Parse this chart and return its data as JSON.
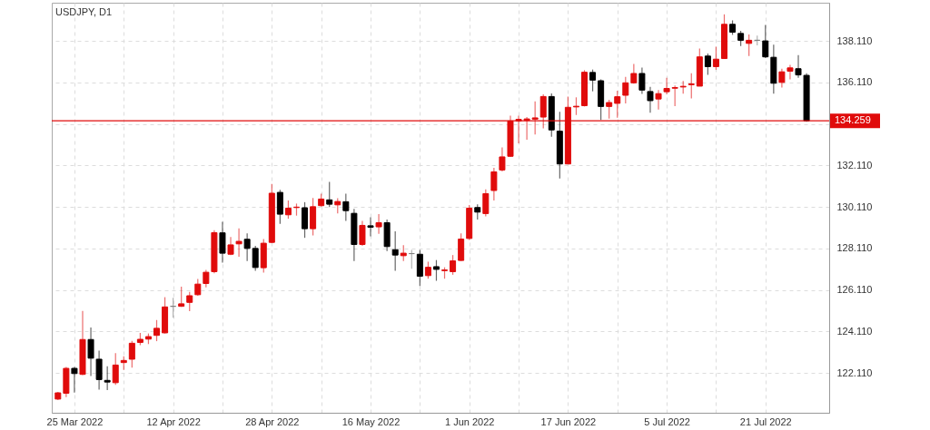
{
  "chart_data": {
    "type": "candlestick",
    "title": "USDJPY, D1",
    "categories": [
      null,
      null,
      "25 Mar 2022",
      null,
      null,
      null,
      null,
      null,
      null,
      null,
      null,
      null,
      null,
      null,
      "12 Apr 2022",
      null,
      null,
      null,
      null,
      null,
      null,
      null,
      null,
      null,
      null,
      null,
      "28 Apr 2022",
      null,
      null,
      null,
      null,
      null,
      null,
      null,
      null,
      null,
      null,
      null,
      "16 May 2022",
      null,
      null,
      null,
      null,
      null,
      null,
      null,
      null,
      null,
      null,
      null,
      "1 Jun 2022",
      null,
      null,
      null,
      null,
      null,
      null,
      null,
      null,
      null,
      null,
      null,
      "17 Jun 2022",
      null,
      null,
      null,
      null,
      null,
      null,
      null,
      null,
      null,
      null,
      null,
      "5 Jul 2022",
      null,
      null,
      null,
      null,
      null,
      null,
      null,
      null,
      null,
      null,
      null,
      "21 Jul 2022",
      null,
      null,
      null,
      null,
      null
    ],
    "ohlc": [
      [
        120.85,
        121.2,
        120.8,
        121.15
      ],
      [
        121.13,
        122.4,
        120.94,
        122.33
      ],
      [
        122.33,
        122.4,
        121.16,
        122.08
      ],
      [
        122.04,
        125.1,
        122.0,
        123.72
      ],
      [
        123.72,
        124.3,
        121.96,
        122.82
      ],
      [
        122.77,
        123.18,
        121.31,
        121.79
      ],
      [
        121.75,
        122.43,
        121.28,
        121.67
      ],
      [
        121.64,
        123.06,
        121.53,
        122.49
      ],
      [
        122.61,
        122.91,
        122.26,
        122.71
      ],
      [
        122.77,
        123.66,
        122.37,
        123.54
      ],
      [
        123.58,
        124.04,
        123.45,
        123.73
      ],
      [
        123.74,
        124.01,
        123.5,
        123.86
      ],
      [
        123.92,
        124.66,
        123.64,
        124.26
      ],
      [
        124.04,
        125.76,
        124.01,
        125.29
      ],
      [
        125.32,
        125.73,
        124.77,
        125.32
      ],
      [
        125.32,
        126.27,
        125.29,
        125.44
      ],
      [
        125.51,
        126.02,
        125.09,
        125.83
      ],
      [
        125.88,
        126.64,
        125.83,
        126.39
      ],
      [
        126.42,
        127.07,
        126.23,
        126.96
      ],
      [
        126.99,
        128.99,
        126.91,
        128.87
      ],
      [
        128.86,
        129.39,
        127.42,
        127.88
      ],
      [
        127.83,
        128.66,
        127.79,
        128.28
      ],
      [
        128.33,
        129.07,
        127.71,
        128.45
      ],
      [
        128.55,
        128.84,
        127.5,
        128.11
      ],
      [
        128.11,
        128.23,
        127.03,
        127.19
      ],
      [
        127.18,
        128.56,
        126.94,
        128.36
      ],
      [
        128.4,
        131.22,
        128.37,
        130.77
      ],
      [
        130.81,
        130.93,
        129.29,
        129.76
      ],
      [
        129.73,
        130.42,
        129.54,
        130.05
      ],
      [
        130.08,
        130.27,
        129.69,
        130.1
      ],
      [
        130.07,
        130.34,
        128.62,
        129.06
      ],
      [
        129.06,
        130.54,
        128.74,
        130.12
      ],
      [
        130.17,
        130.75,
        130.12,
        130.49
      ],
      [
        130.45,
        131.32,
        130.1,
        130.24
      ],
      [
        130.21,
        130.53,
        129.8,
        130.37
      ],
      [
        130.36,
        130.75,
        129.44,
        129.93
      ],
      [
        129.8,
        130.02,
        127.5,
        128.3
      ],
      [
        128.3,
        129.44,
        128.23,
        129.22
      ],
      [
        129.2,
        129.61,
        128.69,
        129.13
      ],
      [
        129.15,
        129.76,
        128.81,
        129.35
      ],
      [
        129.35,
        129.5,
        127.98,
        128.2
      ],
      [
        128.05,
        128.93,
        127.03,
        127.79
      ],
      [
        127.76,
        128.27,
        127.5,
        127.88
      ],
      [
        127.86,
        128.04,
        127.13,
        127.86
      ],
      [
        127.83,
        128.04,
        126.3,
        126.77
      ],
      [
        126.8,
        127.47,
        126.65,
        127.2
      ],
      [
        127.23,
        127.55,
        126.55,
        127.1
      ],
      [
        127.04,
        127.2,
        126.65,
        127.07
      ],
      [
        126.99,
        127.79,
        126.84,
        127.51
      ],
      [
        127.53,
        128.84,
        127.5,
        128.56
      ],
      [
        128.59,
        130.2,
        128.52,
        130.05
      ],
      [
        130.08,
        130.23,
        129.5,
        129.86
      ],
      [
        129.79,
        130.96,
        129.66,
        130.75
      ],
      [
        130.9,
        131.99,
        130.42,
        131.8
      ],
      [
        131.89,
        132.98,
        131.82,
        132.52
      ],
      [
        132.55,
        134.51,
        132.52,
        134.25
      ],
      [
        134.25,
        134.51,
        133.17,
        134.33
      ],
      [
        134.28,
        134.44,
        133.35,
        134.35
      ],
      [
        134.34,
        135.2,
        133.6,
        134.4
      ],
      [
        134.44,
        135.54,
        133.9,
        135.43
      ],
      [
        135.43,
        135.58,
        133.49,
        133.82
      ],
      [
        133.76,
        134.69,
        131.48,
        132.18
      ],
      [
        132.18,
        135.43,
        132.18,
        134.91
      ],
      [
        134.93,
        135.39,
        134.54,
        134.96
      ],
      [
        134.99,
        136.7,
        134.95,
        136.6
      ],
      [
        136.59,
        136.73,
        135.68,
        136.22
      ],
      [
        136.19,
        136.26,
        134.3,
        134.95
      ],
      [
        134.95,
        135.27,
        134.37,
        135.14
      ],
      [
        135.1,
        135.71,
        134.41,
        135.42
      ],
      [
        135.49,
        136.38,
        135.1,
        136.09
      ],
      [
        136.09,
        137.0,
        136.05,
        136.54
      ],
      [
        136.54,
        136.82,
        135.56,
        135.74
      ],
      [
        135.67,
        135.89,
        134.65,
        135.23
      ],
      [
        135.31,
        135.74,
        134.8,
        135.57
      ],
      [
        135.66,
        136.33,
        135.53,
        135.82
      ],
      [
        135.83,
        135.96,
        134.97,
        135.86
      ],
      [
        135.89,
        136.18,
        135.57,
        135.92
      ],
      [
        136.0,
        136.55,
        135.34,
        136.04
      ],
      [
        135.93,
        137.74,
        135.93,
        137.34
      ],
      [
        137.38,
        137.5,
        136.47,
        136.87
      ],
      [
        136.87,
        137.83,
        136.72,
        137.23
      ],
      [
        137.26,
        139.39,
        137.26,
        138.91
      ],
      [
        138.91,
        139.1,
        138.4,
        138.53
      ],
      [
        138.47,
        138.59,
        137.86,
        138.14
      ],
      [
        137.99,
        138.42,
        137.38,
        138.14
      ],
      [
        138.14,
        138.37,
        137.89,
        138.14
      ],
      [
        138.11,
        138.88,
        137.28,
        137.34
      ],
      [
        137.32,
        137.93,
        135.57,
        136.07
      ],
      [
        136.11,
        136.77,
        135.86,
        136.62
      ],
      [
        136.65,
        136.96,
        136.26,
        136.81
      ],
      [
        136.77,
        137.42,
        136.33,
        136.47
      ],
      [
        136.45,
        136.55,
        134.21,
        134.26
      ]
    ],
    "colors": [
      "#e00b0b",
      "#e00b0b",
      "#000000",
      "#e00b0b",
      "#000000",
      "#000000",
      "#000000",
      "#e00b0b",
      "#e00b0b",
      "#e00b0b",
      "#e00b0b",
      "#e00b0b",
      "#e00b0b",
      "#e00b0b",
      "#808080",
      "#e00b0b",
      "#e00b0b",
      "#e00b0b",
      "#e00b0b",
      "#e00b0b",
      "#000000",
      "#e00b0b",
      "#e00b0b",
      "#000000",
      "#000000",
      "#e00b0b",
      "#e00b0b",
      "#000000",
      "#e00b0b",
      "#e00b0b",
      "#000000",
      "#e00b0b",
      "#e00b0b",
      "#000000",
      "#e00b0b",
      "#000000",
      "#000000",
      "#e00b0b",
      "#000000",
      "#e00b0b",
      "#000000",
      "#000000",
      "#e00b0b",
      "#808080",
      "#000000",
      "#e00b0b",
      "#000000",
      "#e00b0b",
      "#e00b0b",
      "#e00b0b",
      "#e00b0b",
      "#000000",
      "#e00b0b",
      "#e00b0b",
      "#e00b0b",
      "#e00b0b",
      "#e00b0b",
      "#e00b0b",
      "#e00b0b",
      "#e00b0b",
      "#000000",
      "#000000",
      "#e00b0b",
      "#e00b0b",
      "#e00b0b",
      "#000000",
      "#000000",
      "#e00b0b",
      "#e00b0b",
      "#e00b0b",
      "#e00b0b",
      "#000000",
      "#000000",
      "#e00b0b",
      "#e00b0b",
      "#e00b0b",
      "#e00b0b",
      "#e00b0b",
      "#e00b0b",
      "#000000",
      "#e00b0b",
      "#e00b0b",
      "#000000",
      "#000000",
      "#e00b0b",
      "#808080",
      "#000000",
      "#000000",
      "#e00b0b",
      "#e00b0b",
      "#000000",
      "#000000"
    ],
    "ylim": [
      120.19,
      139.95
    ],
    "yticks": [
      {
        "value": 122.11,
        "label": "122.110"
      },
      {
        "value": 124.11,
        "label": "124.110"
      },
      {
        "value": 126.11,
        "label": "126.110"
      },
      {
        "value": 128.11,
        "label": "128.110"
      },
      {
        "value": 130.11,
        "label": "130.110"
      },
      {
        "value": 132.11,
        "label": "132.110"
      },
      {
        "value": 134.11,
        "label": null
      },
      {
        "value": 136.11,
        "label": "136.110"
      },
      {
        "value": 138.11,
        "label": "138.110"
      }
    ],
    "ref_lines": [
      {
        "axis": "y",
        "value": 134.259,
        "label": "134.259",
        "color": "#e00b0b"
      }
    ],
    "grid": true
  }
}
